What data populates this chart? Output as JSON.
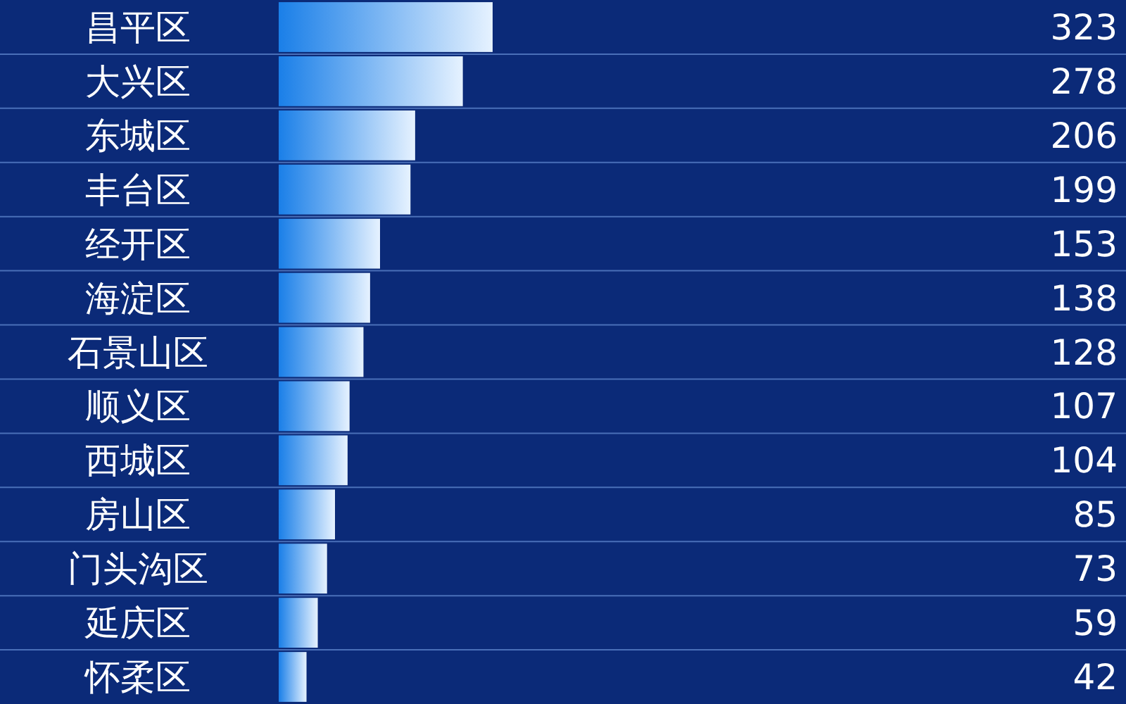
{
  "chart_data": {
    "type": "bar",
    "orientation": "horizontal",
    "categories": [
      "昌平区",
      "大兴区",
      "东城区",
      "丰台区",
      "经开区",
      "海淀区",
      "石景山区",
      "顺义区",
      "西城区",
      "房山区",
      "门头沟区",
      "延庆区",
      "怀柔区"
    ],
    "values": [
      323,
      278,
      206,
      199,
      153,
      138,
      128,
      107,
      104,
      85,
      73,
      59,
      42
    ],
    "color": "#1a7fe8",
    "data_labels": true,
    "grid": "y"
  }
}
